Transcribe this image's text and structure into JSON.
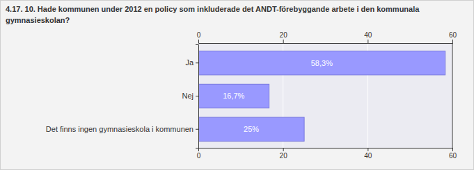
{
  "chart_data": {
    "type": "bar",
    "orientation": "horizontal",
    "title": "4.17. 10. Hade kommunen under 2012 en policy som inkluderade det ANDT-förebyggande arbete i den kommunala gymnasieskolan?",
    "categories": [
      "Ja",
      "Nej",
      "Det finns ingen gymnasieskola i kommunen"
    ],
    "values": [
      58.3,
      16.7,
      25
    ],
    "value_labels": [
      "58,3%",
      "16,7%",
      "25%"
    ],
    "data_labels": true,
    "color": "#9999ff",
    "xlim": [
      0,
      60
    ],
    "xticks": [
      0,
      20,
      40,
      60
    ],
    "grid": true
  }
}
